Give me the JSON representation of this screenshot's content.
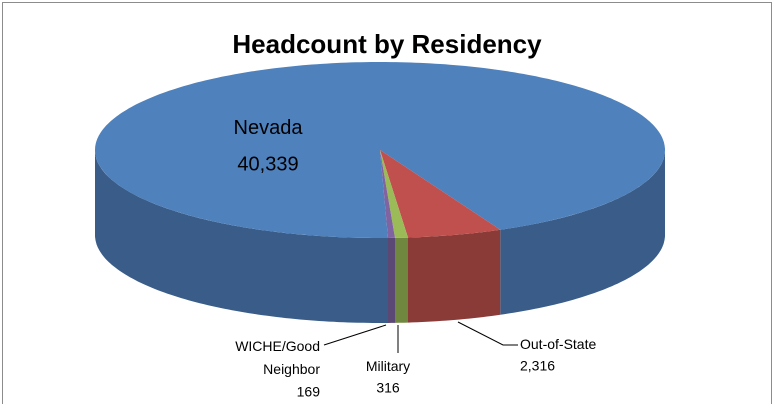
{
  "chart_data": {
    "type": "pie3d",
    "title": "Headcount by Residency",
    "categories": [
      "Nevada",
      "Out-of-State",
      "Military",
      "WICHE/Good Neighbor"
    ],
    "values": [
      40339,
      2316,
      316,
      169
    ],
    "value_labels": [
      "40,339",
      "2,316",
      "316",
      "169"
    ],
    "colors": [
      "#4f81bd",
      "#c0504d",
      "#9bbb59",
      "#8064a2"
    ]
  }
}
